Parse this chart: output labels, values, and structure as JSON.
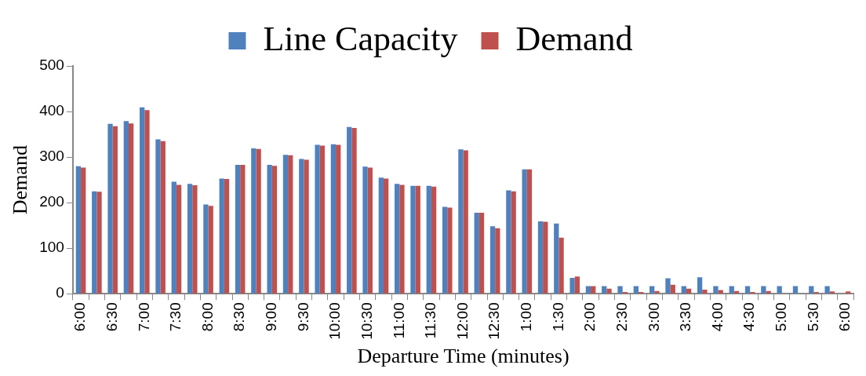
{
  "chart_data": {
    "type": "bar",
    "xlabel": "Departure Time (minutes)",
    "ylabel": "Demand",
    "categories": [
      "6:00",
      null,
      "6:30",
      null,
      "7:00",
      null,
      "7:30",
      null,
      "8:00",
      null,
      "8:30",
      null,
      "9:00",
      null,
      "9:30",
      null,
      "10:00",
      null,
      "10:30",
      null,
      "11:00",
      null,
      "11:30",
      null,
      "12:00",
      null,
      "12:30",
      null,
      "1:00",
      null,
      "1:30",
      null,
      "2:00",
      null,
      "2:30",
      null,
      "3:00",
      null,
      "3:30",
      null,
      "4:00",
      null,
      "4:30",
      null,
      "5:00",
      null,
      "5:30",
      null,
      "6:00"
    ],
    "series": [
      {
        "name": "Line Capacity",
        "color": "#4f81bd",
        "values": [
          280,
          225,
          373,
          379,
          409,
          339,
          246,
          241,
          196,
          253,
          283,
          319,
          283,
          305,
          296,
          327,
          328,
          366,
          279,
          255,
          241,
          237,
          237,
          191,
          317,
          178,
          148,
          227,
          273,
          159,
          154,
          35,
          17,
          17,
          17,
          17,
          17,
          34,
          17,
          36,
          17,
          17,
          17,
          17,
          17,
          17,
          17,
          17,
          0
        ]
      },
      {
        "name": "Demand",
        "color": "#c0504d",
        "values": [
          277,
          224,
          368,
          374,
          403,
          335,
          239,
          238,
          193,
          252,
          283,
          318,
          281,
          304,
          294,
          325,
          327,
          364,
          277,
          253,
          239,
          237,
          235,
          189,
          315,
          178,
          144,
          225,
          273,
          158,
          123,
          38,
          17,
          11,
          4,
          4,
          6,
          20,
          11,
          9,
          8,
          6,
          4,
          6,
          1,
          1,
          4,
          5,
          5
        ]
      }
    ],
    "ylim": [
      0,
      500
    ],
    "yticks": [
      0,
      100,
      200,
      300,
      400,
      500
    ],
    "grid": false,
    "legend": "top"
  }
}
